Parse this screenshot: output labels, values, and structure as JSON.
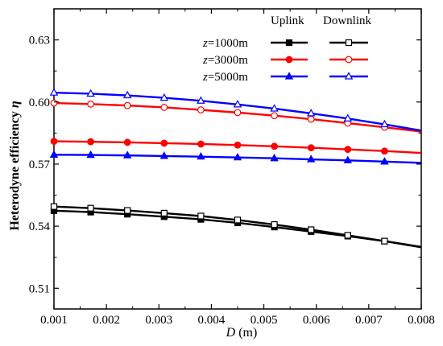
{
  "chart_data": {
    "type": "line",
    "xlabel_symbol": "D",
    "xlabel_unit": " (m)",
    "ylabel_text": "Heterodyne efficiency ",
    "ylabel_symbol": "η",
    "xlim": [
      0.001,
      0.008
    ],
    "ylim": [
      0.5,
      0.645
    ],
    "x_ticks": [
      "0.001",
      "0.002",
      "0.003",
      "0.004",
      "0.005",
      "0.006",
      "0.007",
      "0.008"
    ],
    "y_ticks": [
      "0.51",
      "0.54",
      "0.57",
      "0.60",
      "0.63"
    ],
    "legend_headers": [
      "Uplink",
      "Downlink"
    ],
    "legend_placement": "top-right",
    "grid": false,
    "series": [
      {
        "name": "z=1000m",
        "link": "Uplink",
        "color": "#000000",
        "marker": "square",
        "filled": true,
        "x": [
          0.001,
          0.0017,
          0.0024,
          0.0031,
          0.0038,
          0.0045,
          0.0052,
          0.0059,
          0.0066,
          0.0073,
          0.008
        ],
        "y": [
          0.5475,
          0.5468,
          0.5458,
          0.5446,
          0.5433,
          0.5416,
          0.5396,
          0.5374,
          0.5352,
          0.5328,
          0.53
        ]
      },
      {
        "name": "z=1000m",
        "link": "Downlink",
        "color": "#000000",
        "marker": "square",
        "filled": false,
        "x": [
          0.001,
          0.0017,
          0.0024,
          0.0031,
          0.0038,
          0.0045,
          0.0052,
          0.0059,
          0.0066,
          0.0073,
          0.008
        ],
        "y": [
          0.5495,
          0.5487,
          0.5476,
          0.5463,
          0.5449,
          0.543,
          0.5408,
          0.5383,
          0.5356,
          0.5328,
          0.5298
        ]
      },
      {
        "name": "z=3000m",
        "link": "Uplink",
        "color": "#ff0000",
        "marker": "circle",
        "filled": true,
        "x": [
          0.001,
          0.0017,
          0.0024,
          0.0031,
          0.0038,
          0.0045,
          0.0052,
          0.0059,
          0.0066,
          0.0073,
          0.008
        ],
        "y": [
          0.581,
          0.5808,
          0.5805,
          0.5801,
          0.5797,
          0.5792,
          0.5786,
          0.5779,
          0.5771,
          0.5763,
          0.5754
        ]
      },
      {
        "name": "z=3000m",
        "link": "Downlink",
        "color": "#ff0000",
        "marker": "circle",
        "filled": false,
        "x": [
          0.001,
          0.0017,
          0.0024,
          0.0031,
          0.0038,
          0.0045,
          0.0052,
          0.0059,
          0.0066,
          0.0073,
          0.008
        ],
        "y": [
          0.5995,
          0.599,
          0.5983,
          0.5974,
          0.5962,
          0.5949,
          0.5934,
          0.5917,
          0.5898,
          0.5878,
          0.5857
        ]
      },
      {
        "name": "z=5000m",
        "link": "Uplink",
        "color": "#0000ff",
        "marker": "triangle",
        "filled": true,
        "x": [
          0.001,
          0.0017,
          0.0024,
          0.0031,
          0.0038,
          0.0045,
          0.0052,
          0.0059,
          0.0066,
          0.0073,
          0.008
        ],
        "y": [
          0.5745,
          0.5744,
          0.5742,
          0.5739,
          0.5736,
          0.5732,
          0.5728,
          0.5723,
          0.5718,
          0.5712,
          0.5706
        ]
      },
      {
        "name": "z=5000m",
        "link": "Downlink",
        "color": "#0000ff",
        "marker": "triangle",
        "filled": false,
        "x": [
          0.001,
          0.0017,
          0.0024,
          0.0031,
          0.0038,
          0.0045,
          0.0052,
          0.0059,
          0.0066,
          0.0073,
          0.008
        ],
        "y": [
          0.6045,
          0.604,
          0.6032,
          0.602,
          0.6006,
          0.5988,
          0.5968,
          0.5945,
          0.592,
          0.5892,
          0.5862
        ]
      }
    ],
    "legend_rows": [
      {
        "italic": "z",
        "rest": "=1000m",
        "color": "#000000",
        "marker": "square"
      },
      {
        "italic": "z",
        "rest": "=3000m",
        "color": "#ff0000",
        "marker": "circle"
      },
      {
        "italic": "z",
        "rest": "=5000m",
        "color": "#0000ff",
        "marker": "triangle"
      }
    ]
  }
}
